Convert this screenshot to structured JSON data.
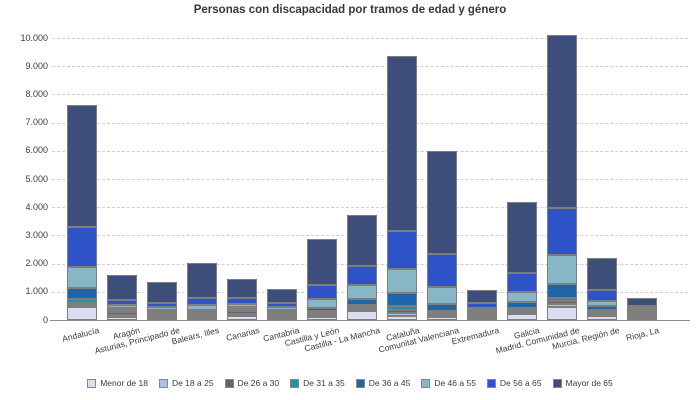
{
  "title": "Personas con discapacidad por tramos de edad y género",
  "chart_data": {
    "type": "bar",
    "stacked": true,
    "title": "Personas con discapacidad por tramos de edad y género",
    "xlabel": "",
    "ylabel": "",
    "ylim": [
      0,
      10300
    ],
    "grid": "horizontal-dashed",
    "legend_position": "bottom",
    "ytick_labels": [
      "0",
      "1.000",
      "2.000",
      "3.000",
      "4.000",
      "5.000",
      "6.000",
      "7.000",
      "8.000",
      "9.000",
      "10.000"
    ],
    "ytick_values": [
      0,
      1000,
      2000,
      3000,
      4000,
      5000,
      6000,
      7000,
      8000,
      9000,
      10000
    ],
    "categories": [
      "Andalucía",
      "Aragón",
      "Asturias, Principado de",
      "Balears, Illes",
      "Canarias",
      "Cantabria",
      "Castilla y León",
      "Castilla - La Mancha",
      "Cataluña",
      "Comunitat Valenciana",
      "Extremadura",
      "Galicia",
      "Madrid, Comunidad de",
      "Murcia, Región de",
      "Rioja, La"
    ],
    "series": [
      {
        "name": "Menor de 18",
        "color": "#DADDEE",
        "values": [
          470,
          100,
          40,
          65,
          130,
          65,
          110,
          320,
          140,
          120,
          40,
          200,
          470,
          140,
          25
        ]
      },
      {
        "name": "De 18 a 25",
        "color": "#ACC3E0",
        "values": [
          80,
          30,
          25,
          30,
          35,
          20,
          40,
          45,
          95,
          60,
          20,
          40,
          120,
          25,
          10
        ]
      },
      {
        "name": "De 26 a 30",
        "color": "#636363",
        "values": [
          80,
          90,
          60,
          70,
          90,
          70,
          75,
          70,
          120,
          85,
          50,
          60,
          95,
          60,
          55
        ]
      },
      {
        "name": "De 31 a 35",
        "color": "#1F93AE",
        "values": [
          140,
          25,
          25,
          35,
          25,
          20,
          35,
          40,
          140,
          70,
          15,
          45,
          120,
          30,
          10
        ]
      },
      {
        "name": "De 36 a 45",
        "color": "#1F66A8",
        "values": [
          390,
          40,
          45,
          80,
          45,
          35,
          95,
          215,
          450,
          260,
          30,
          210,
          505,
          150,
          15
        ]
      },
      {
        "name": "De 46 a 55",
        "color": "#87B7C7",
        "values": [
          750,
          110,
          110,
          160,
          120,
          95,
          310,
          500,
          850,
          590,
          85,
          355,
          1030,
          180,
          15
        ]
      },
      {
        "name": "De 56 a 65",
        "color": "#2D53C6",
        "values": [
          1430,
          170,
          150,
          240,
          200,
          140,
          495,
          675,
          1360,
          1180,
          170,
          690,
          1655,
          400,
          15
        ]
      },
      {
        "name": "Mayor de 65",
        "color": "#3E4E7A",
        "values": [
          4330,
          870,
          750,
          1230,
          675,
          505,
          1640,
          1815,
          6195,
          3655,
          460,
          2500,
          6125,
          1145,
          285
        ]
      }
    ],
    "totals": [
      7670,
      1435,
      1205,
      1910,
      1320,
      950,
      2800,
      3680,
      9350,
      6020,
      870,
      4100,
      10120,
      2130,
      430
    ]
  },
  "colors": {
    "grid": "#cfcfcf",
    "axis": "#8a8a8a",
    "segment_border": "#7e7e7e",
    "text": "#3c3c3c"
  }
}
